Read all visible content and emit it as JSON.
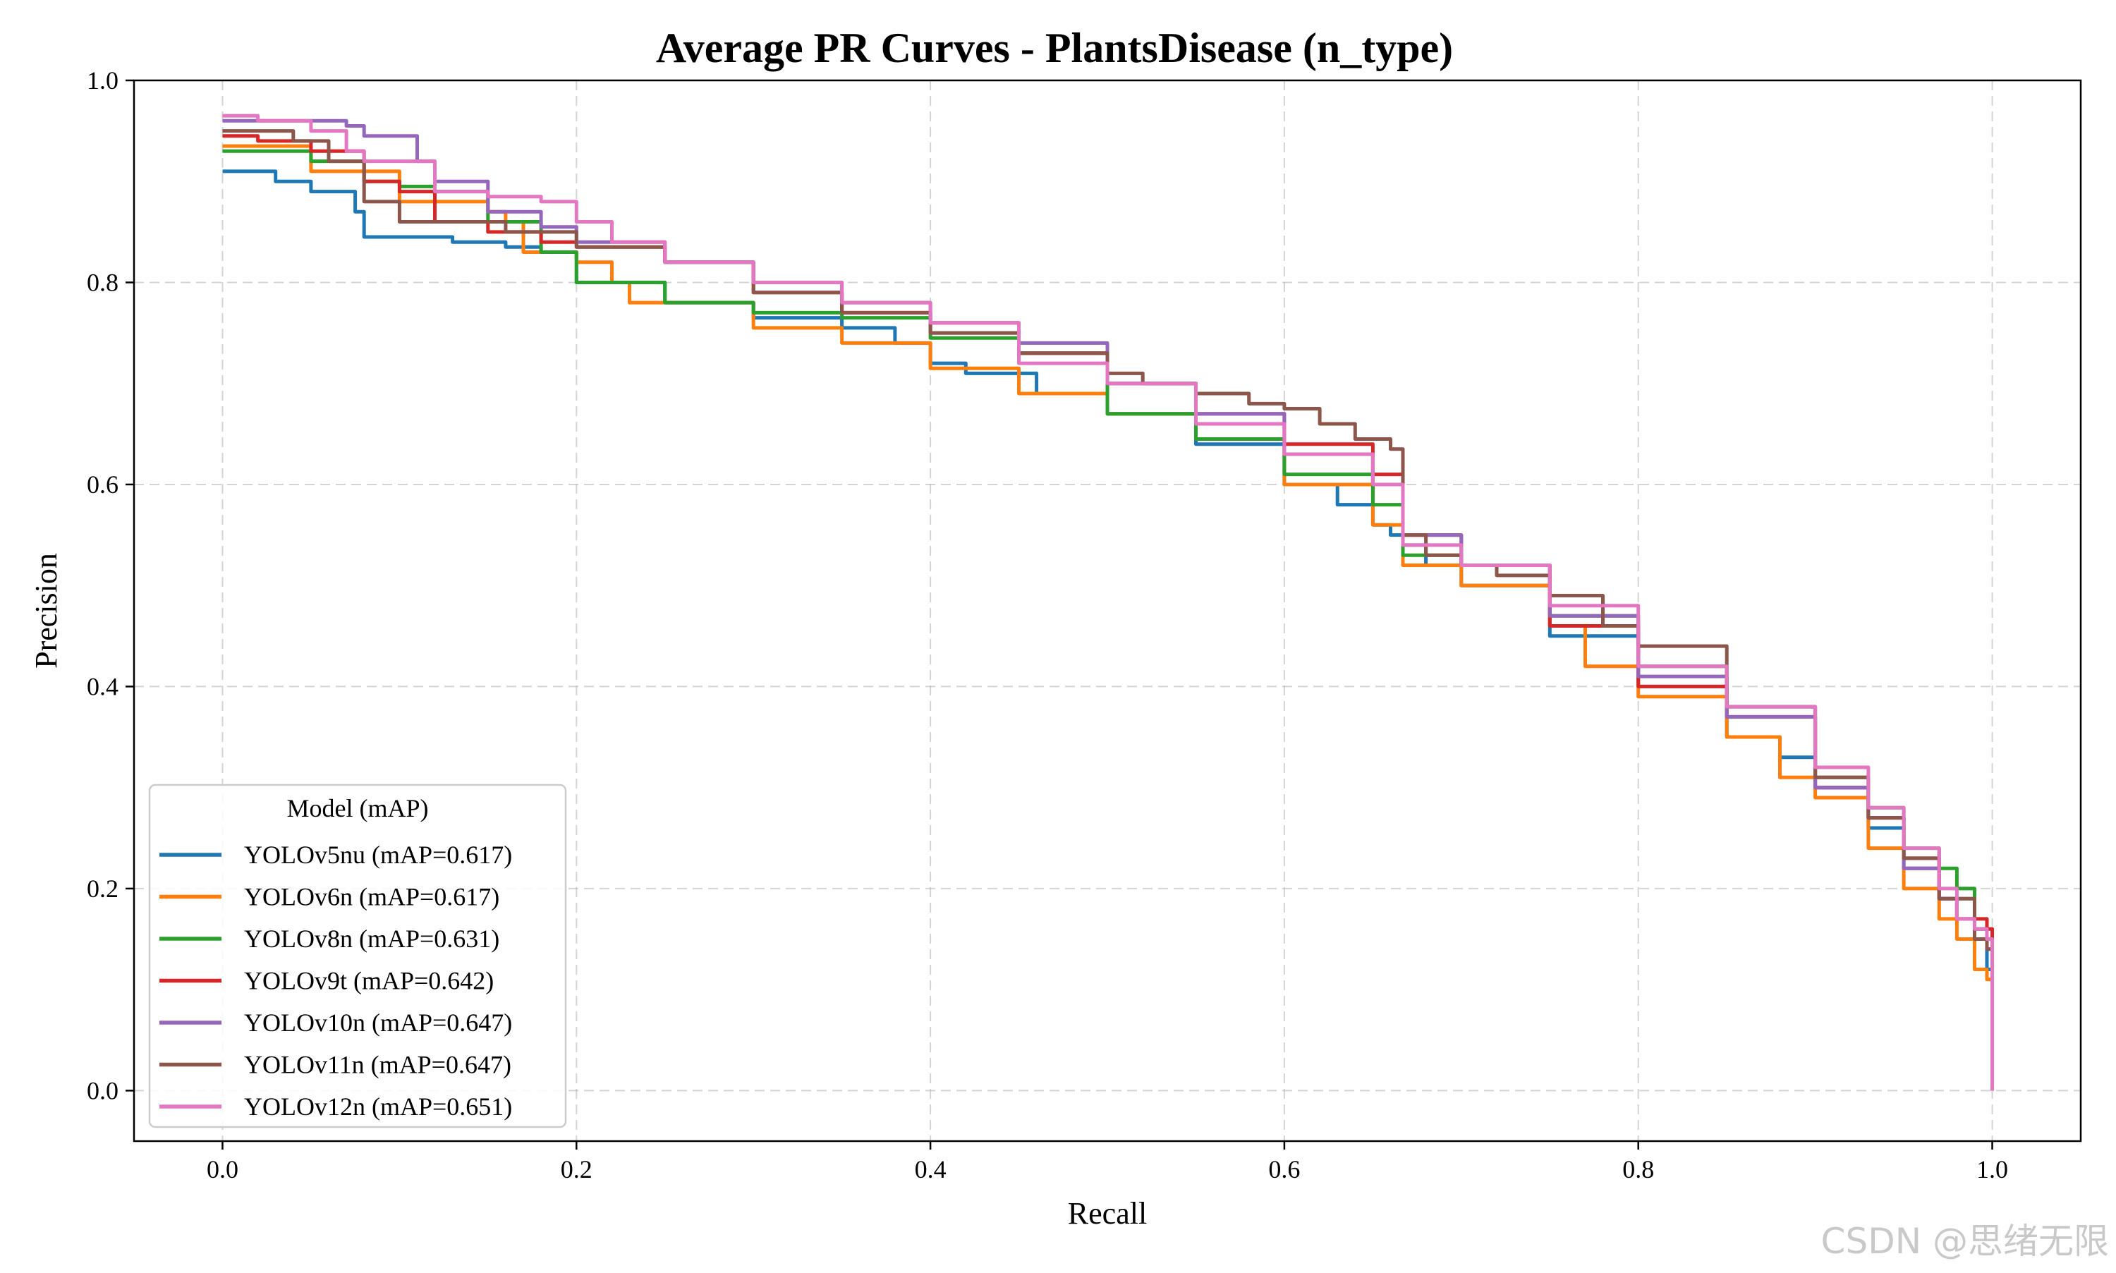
{
  "chart_data": {
    "type": "line",
    "title": "Average PR Curves - PlantsDisease (n_type)",
    "xlabel": "Recall",
    "ylabel": "Precision",
    "xlim": [
      -0.05,
      1.05
    ],
    "ylim": [
      -0.05,
      1.0
    ],
    "xticks": [
      0.0,
      0.2,
      0.4,
      0.6,
      0.8,
      1.0
    ],
    "yticks": [
      0.0,
      0.2,
      0.4,
      0.6,
      0.8,
      1.0
    ],
    "xtick_labels": [
      "0.0",
      "0.2",
      "0.4",
      "0.6",
      "0.8",
      "1.0"
    ],
    "ytick_labels": [
      "0.0",
      "0.2",
      "0.4",
      "0.6",
      "0.8",
      "1.0"
    ],
    "grid": true,
    "legend_title": "Model (mAP)",
    "legend_position": "lower-left",
    "series": [
      {
        "name": "YOLOv5nu (mAP=0.617)",
        "color": "#1f77b4",
        "x": [
          0.0,
          0.02,
          0.03,
          0.05,
          0.06,
          0.075,
          0.08,
          0.1,
          0.13,
          0.16,
          0.18,
          0.2,
          0.25,
          0.3,
          0.35,
          0.38,
          0.4,
          0.42,
          0.46,
          0.5,
          0.55,
          0.6,
          0.63,
          0.65,
          0.66,
          0.667,
          0.68,
          0.7,
          0.75,
          0.8,
          0.85,
          0.88,
          0.9,
          0.93,
          0.95,
          0.97,
          0.99,
          0.997,
          1.0,
          1.0
        ],
        "y": [
          0.91,
          0.91,
          0.9,
          0.89,
          0.89,
          0.87,
          0.845,
          0.845,
          0.84,
          0.835,
          0.83,
          0.8,
          0.78,
          0.765,
          0.755,
          0.74,
          0.72,
          0.71,
          0.69,
          0.67,
          0.64,
          0.6,
          0.58,
          0.56,
          0.55,
          0.54,
          0.52,
          0.5,
          0.45,
          0.4,
          0.35,
          0.33,
          0.3,
          0.26,
          0.22,
          0.19,
          0.16,
          0.12,
          0.12,
          0.0
        ]
      },
      {
        "name": "YOLOv6n (mAP=0.617)",
        "color": "#ff7f0e",
        "x": [
          0.0,
          0.03,
          0.05,
          0.1,
          0.15,
          0.16,
          0.17,
          0.2,
          0.22,
          0.23,
          0.3,
          0.35,
          0.4,
          0.45,
          0.5,
          0.55,
          0.6,
          0.65,
          0.667,
          0.7,
          0.75,
          0.77,
          0.8,
          0.85,
          0.88,
          0.9,
          0.93,
          0.95,
          0.97,
          0.98,
          0.99,
          0.997,
          1.0,
          1.0
        ],
        "y": [
          0.935,
          0.935,
          0.91,
          0.88,
          0.87,
          0.86,
          0.83,
          0.82,
          0.8,
          0.78,
          0.755,
          0.74,
          0.715,
          0.69,
          0.67,
          0.645,
          0.6,
          0.56,
          0.52,
          0.5,
          0.46,
          0.42,
          0.39,
          0.35,
          0.31,
          0.29,
          0.24,
          0.2,
          0.17,
          0.15,
          0.12,
          0.11,
          0.11,
          0.0
        ]
      },
      {
        "name": "YOLOv8n (mAP=0.631)",
        "color": "#2ca02c",
        "x": [
          0.0,
          0.02,
          0.05,
          0.08,
          0.1,
          0.12,
          0.15,
          0.18,
          0.2,
          0.25,
          0.3,
          0.35,
          0.4,
          0.45,
          0.5,
          0.55,
          0.6,
          0.65,
          0.667,
          0.7,
          0.75,
          0.8,
          0.85,
          0.9,
          0.93,
          0.95,
          0.97,
          0.98,
          0.99,
          0.997,
          1.0,
          1.0
        ],
        "y": [
          0.93,
          0.93,
          0.92,
          0.9,
          0.895,
          0.89,
          0.86,
          0.83,
          0.8,
          0.78,
          0.77,
          0.765,
          0.745,
          0.73,
          0.67,
          0.645,
          0.61,
          0.58,
          0.53,
          0.52,
          0.47,
          0.42,
          0.38,
          0.31,
          0.28,
          0.24,
          0.22,
          0.2,
          0.16,
          0.15,
          0.15,
          0.0
        ]
      },
      {
        "name": "YOLOv9t (mAP=0.642)",
        "color": "#d62728",
        "x": [
          0.0,
          0.02,
          0.05,
          0.08,
          0.1,
          0.12,
          0.15,
          0.18,
          0.2,
          0.25,
          0.3,
          0.35,
          0.4,
          0.45,
          0.5,
          0.55,
          0.6,
          0.65,
          0.667,
          0.7,
          0.75,
          0.8,
          0.85,
          0.9,
          0.93,
          0.95,
          0.97,
          0.98,
          0.99,
          0.997,
          1.0,
          1.0
        ],
        "y": [
          0.945,
          0.94,
          0.93,
          0.9,
          0.89,
          0.86,
          0.85,
          0.84,
          0.835,
          0.82,
          0.79,
          0.77,
          0.76,
          0.73,
          0.7,
          0.67,
          0.64,
          0.61,
          0.55,
          0.52,
          0.46,
          0.4,
          0.37,
          0.3,
          0.27,
          0.23,
          0.19,
          0.17,
          0.17,
          0.16,
          0.16,
          0.0
        ]
      },
      {
        "name": "YOLOv10n (mAP=0.647)",
        "color": "#9467bd",
        "x": [
          0.0,
          0.02,
          0.05,
          0.07,
          0.08,
          0.1,
          0.11,
          0.12,
          0.15,
          0.18,
          0.2,
          0.25,
          0.3,
          0.35,
          0.4,
          0.45,
          0.5,
          0.55,
          0.6,
          0.65,
          0.667,
          0.7,
          0.75,
          0.8,
          0.85,
          0.9,
          0.93,
          0.95,
          0.97,
          0.98,
          0.99,
          0.997,
          1.0,
          1.0
        ],
        "y": [
          0.96,
          0.96,
          0.96,
          0.955,
          0.945,
          0.945,
          0.92,
          0.9,
          0.87,
          0.855,
          0.84,
          0.82,
          0.8,
          0.78,
          0.75,
          0.74,
          0.7,
          0.67,
          0.63,
          0.6,
          0.55,
          0.52,
          0.47,
          0.41,
          0.37,
          0.3,
          0.27,
          0.22,
          0.19,
          0.17,
          0.15,
          0.14,
          0.14,
          0.0
        ]
      },
      {
        "name": "YOLOv11n (mAP=0.647)",
        "color": "#8c564b",
        "x": [
          0.0,
          0.02,
          0.04,
          0.06,
          0.08,
          0.1,
          0.13,
          0.16,
          0.2,
          0.25,
          0.3,
          0.35,
          0.4,
          0.45,
          0.5,
          0.52,
          0.55,
          0.58,
          0.6,
          0.62,
          0.64,
          0.66,
          0.667,
          0.68,
          0.7,
          0.72,
          0.75,
          0.78,
          0.8,
          0.85,
          0.9,
          0.93,
          0.95,
          0.97,
          0.99,
          0.997,
          1.0,
          1.0
        ],
        "y": [
          0.95,
          0.95,
          0.94,
          0.92,
          0.88,
          0.86,
          0.86,
          0.85,
          0.835,
          0.82,
          0.79,
          0.77,
          0.75,
          0.73,
          0.71,
          0.7,
          0.69,
          0.68,
          0.675,
          0.66,
          0.645,
          0.635,
          0.55,
          0.53,
          0.52,
          0.51,
          0.49,
          0.46,
          0.44,
          0.38,
          0.31,
          0.27,
          0.23,
          0.19,
          0.15,
          0.14,
          0.14,
          0.0
        ]
      },
      {
        "name": "YOLOv12n (mAP=0.651)",
        "color": "#e377c2",
        "x": [
          0.0,
          0.02,
          0.05,
          0.07,
          0.08,
          0.1,
          0.12,
          0.15,
          0.18,
          0.2,
          0.22,
          0.25,
          0.3,
          0.35,
          0.4,
          0.45,
          0.5,
          0.55,
          0.6,
          0.65,
          0.667,
          0.7,
          0.75,
          0.8,
          0.85,
          0.9,
          0.93,
          0.95,
          0.97,
          0.98,
          0.99,
          0.997,
          1.0,
          1.0
        ],
        "y": [
          0.965,
          0.96,
          0.95,
          0.93,
          0.92,
          0.92,
          0.89,
          0.885,
          0.88,
          0.86,
          0.84,
          0.82,
          0.8,
          0.78,
          0.76,
          0.72,
          0.7,
          0.66,
          0.63,
          0.6,
          0.54,
          0.52,
          0.48,
          0.42,
          0.38,
          0.32,
          0.28,
          0.24,
          0.2,
          0.17,
          0.16,
          0.15,
          0.15,
          0.0
        ]
      }
    ]
  },
  "watermark": "CSDN @思绪无限"
}
